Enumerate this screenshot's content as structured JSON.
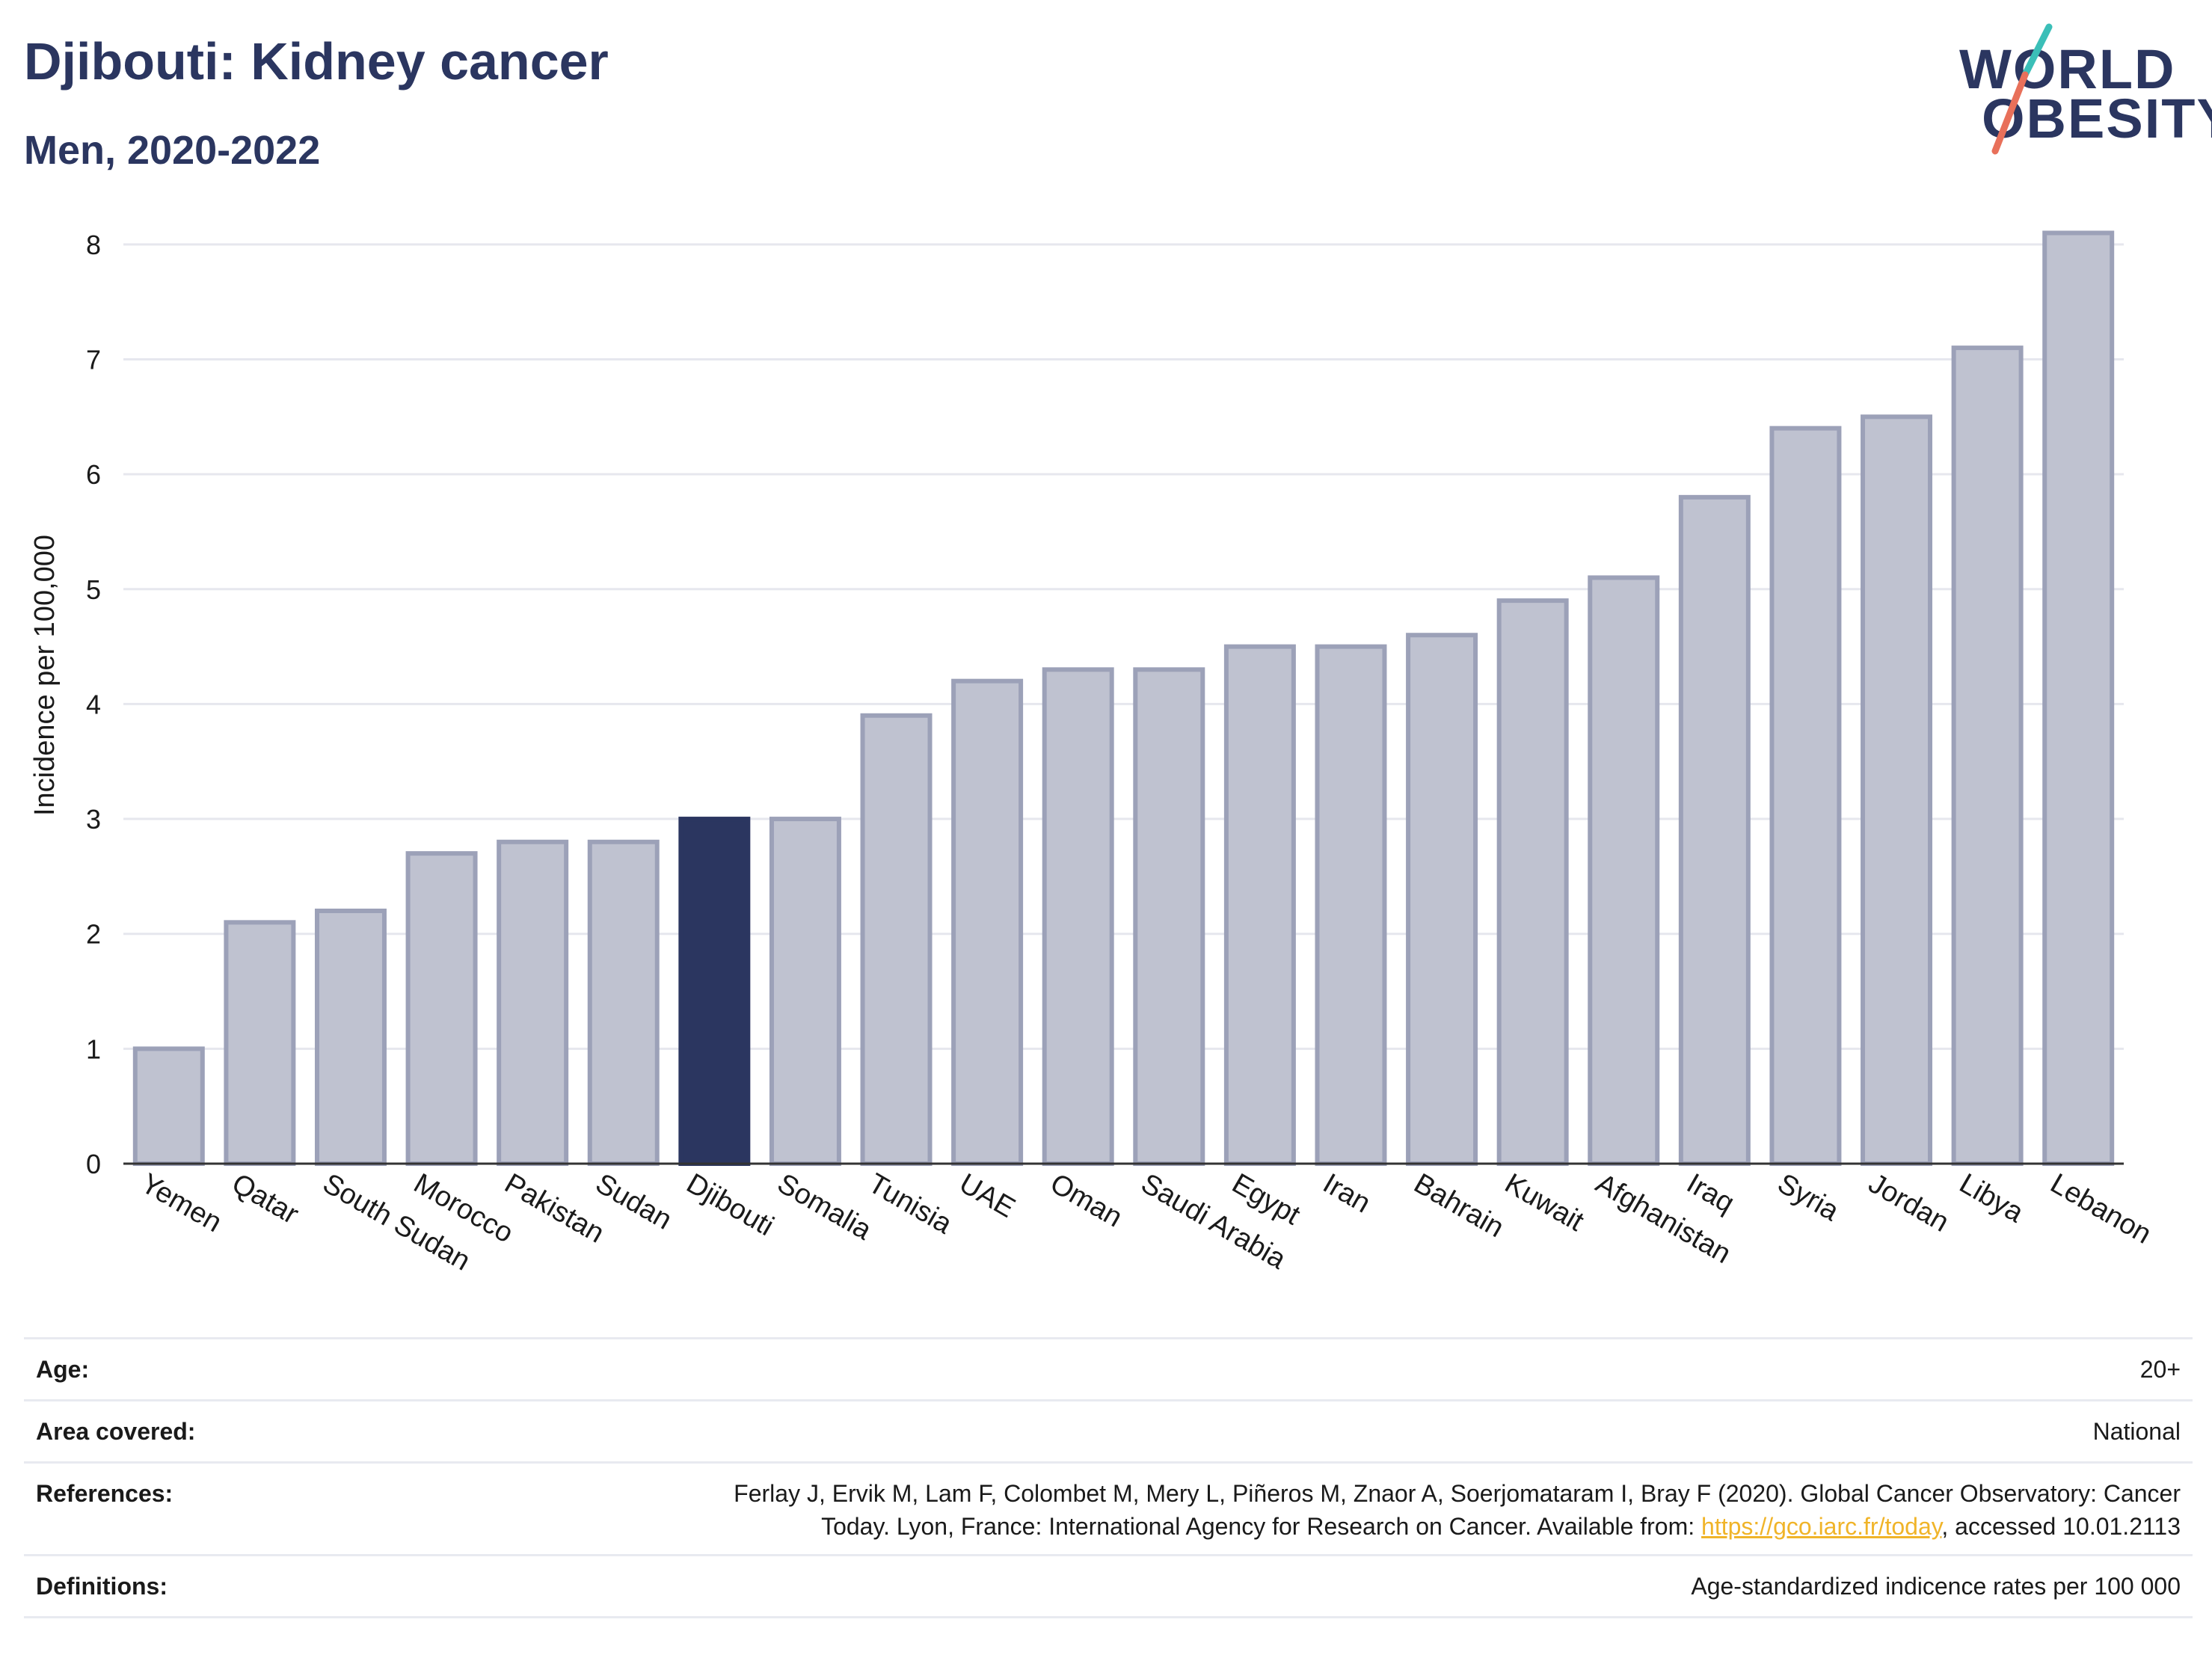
{
  "header": {
    "title": "Djibouti: Kidney cancer",
    "subtitle": "Men, 2020-2022"
  },
  "logo": {
    "line1": "WORLD",
    "line2": "OBESITY",
    "accent_colors": [
      "#3bbfb8",
      "#e8705a"
    ]
  },
  "chart_data": {
    "type": "bar",
    "ylabel": "Incidence per 100,000",
    "ylim": [
      0,
      8.5
    ],
    "yticks": [
      0,
      1,
      2,
      3,
      4,
      5,
      6,
      7,
      8
    ],
    "grid": true,
    "categories": [
      "Yemen",
      "Qatar",
      "South Sudan",
      "Morocco",
      "Pakistan",
      "Sudan",
      "Djibouti",
      "Somalia",
      "Tunisia",
      "UAE",
      "Oman",
      "Saudi Arabia",
      "Egypt",
      "Iran",
      "Bahrain",
      "Kuwait",
      "Afghanistan",
      "Iraq",
      "Syria",
      "Jordan",
      "Libya",
      "Lebanon"
    ],
    "values": [
      1.0,
      2.1,
      2.2,
      2.7,
      2.8,
      2.8,
      3.0,
      3.0,
      3.9,
      4.2,
      4.3,
      4.3,
      4.5,
      4.5,
      4.6,
      4.9,
      5.1,
      5.8,
      6.4,
      6.5,
      7.1,
      8.1
    ],
    "highlight": "Djibouti",
    "colors": {
      "bar": "#bfc2d0",
      "bar_border": "#9ca1b8",
      "highlight": "#2b3660",
      "grid": "#e6e7ee",
      "axis": "#333333"
    }
  },
  "info": {
    "age_label": "Age:",
    "age_value": "20+",
    "area_label": "Area covered:",
    "area_value": "National",
    "references_label": "References:",
    "references_line1": "Ferlay J, Ervik M, Lam F, Colombet M, Mery L, Piñeros M, Znaor A, Soerjomataram I, Bray F (2020). Global Cancer Observatory: Cancer",
    "references_line2_pre": "Today. Lyon, France: International Agency for Research on Cancer. Available from: ",
    "references_link": "https://gco.iarc.fr/today",
    "references_line2_post": ", accessed 10.01.2113",
    "definitions_label": "Definitions:",
    "definitions_value": "Age-standardized indicence rates per 100 000"
  }
}
